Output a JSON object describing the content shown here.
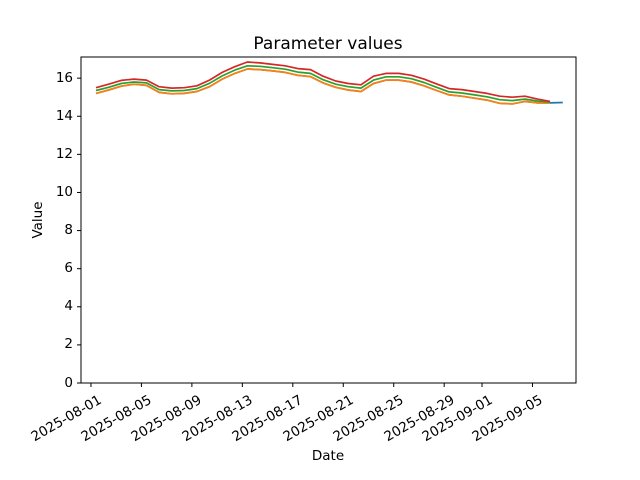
{
  "chart_data": {
    "type": "line",
    "title": "Parameter values",
    "xlabel": "Date",
    "ylabel": "Value",
    "grid": false,
    "legend": "none",
    "ylim": [
      0,
      17.11
    ],
    "xlim_days": [
      -0.79,
      38.45
    ],
    "x_offset_days": 0.4,
    "yticks": [
      0,
      2,
      4,
      6,
      8,
      10,
      12,
      14,
      16
    ],
    "xticks": [
      {
        "label": "2025-08-01",
        "day": 0
      },
      {
        "label": "2025-08-05",
        "day": 4
      },
      {
        "label": "2025-08-09",
        "day": 8
      },
      {
        "label": "2025-08-13",
        "day": 12
      },
      {
        "label": "2025-08-17",
        "day": 16
      },
      {
        "label": "2025-08-21",
        "day": 20
      },
      {
        "label": "2025-08-25",
        "day": 24
      },
      {
        "label": "2025-08-29",
        "day": 28
      },
      {
        "label": "2025-09-01",
        "day": 31
      },
      {
        "label": "2025-09-05",
        "day": 35
      }
    ],
    "x": [
      "2025-08-01",
      "2025-08-02",
      "2025-08-03",
      "2025-08-04",
      "2025-08-05",
      "2025-08-06",
      "2025-08-07",
      "2025-08-08",
      "2025-08-09",
      "2025-08-10",
      "2025-08-11",
      "2025-08-12",
      "2025-08-13",
      "2025-08-14",
      "2025-08-15",
      "2025-08-16",
      "2025-08-17",
      "2025-08-18",
      "2025-08-19",
      "2025-08-20",
      "2025-08-21",
      "2025-08-22",
      "2025-08-23",
      "2025-08-24",
      "2025-08-25",
      "2025-08-26",
      "2025-08-27",
      "2025-08-28",
      "2025-08-29",
      "2025-08-30",
      "2025-08-31",
      "2025-09-01",
      "2025-09-02",
      "2025-09-03",
      "2025-09-04",
      "2025-09-05",
      "2025-09-06",
      "2025-09-07"
    ],
    "series": [
      {
        "name": "blue",
        "color": "#1f77b4",
        "values": [
          15.2,
          15.38,
          15.58,
          15.68,
          15.62,
          15.25,
          15.18,
          15.2,
          15.3,
          15.55,
          15.95,
          16.25,
          16.48,
          16.45,
          16.38,
          16.3,
          16.15,
          16.08,
          15.75,
          15.52,
          15.38,
          15.3,
          15.72,
          15.9,
          15.9,
          15.8,
          15.6,
          15.35,
          15.12,
          15.05,
          14.95,
          14.85,
          14.68,
          14.65,
          14.78,
          14.7,
          14.7,
          14.72
        ]
      },
      {
        "name": "orange",
        "color": "#ff7f0e",
        "values": [
          15.2,
          15.38,
          15.58,
          15.68,
          15.62,
          15.25,
          15.18,
          15.2,
          15.3,
          15.55,
          15.95,
          16.25,
          16.48,
          16.45,
          16.38,
          16.3,
          16.15,
          16.08,
          15.75,
          15.52,
          15.38,
          15.3,
          15.72,
          15.9,
          15.9,
          15.8,
          15.6,
          15.35,
          15.12,
          15.05,
          14.95,
          14.85,
          14.68,
          14.65,
          14.78,
          14.7,
          14.7,
          null
        ]
      },
      {
        "name": "green",
        "color": "#2ca02c",
        "values": [
          15.35,
          15.52,
          15.72,
          15.8,
          15.75,
          15.4,
          15.33,
          15.35,
          15.45,
          15.73,
          16.12,
          16.42,
          16.65,
          16.62,
          16.55,
          16.47,
          16.32,
          16.25,
          15.92,
          15.68,
          15.55,
          15.48,
          15.9,
          16.07,
          16.07,
          15.97,
          15.77,
          15.52,
          15.28,
          15.22,
          15.12,
          15.02,
          14.87,
          14.82,
          14.9,
          14.8,
          14.74,
          null
        ]
      },
      {
        "name": "red",
        "color": "#d62728",
        "values": [
          15.5,
          15.68,
          15.88,
          15.95,
          15.9,
          15.55,
          15.48,
          15.5,
          15.6,
          15.9,
          16.3,
          16.6,
          16.85,
          16.8,
          16.72,
          16.65,
          16.5,
          16.45,
          16.1,
          15.85,
          15.72,
          15.65,
          16.1,
          16.25,
          16.25,
          16.15,
          15.95,
          15.7,
          15.45,
          15.4,
          15.3,
          15.2,
          15.05,
          15.0,
          15.05,
          14.9,
          14.78,
          null
        ]
      }
    ]
  }
}
